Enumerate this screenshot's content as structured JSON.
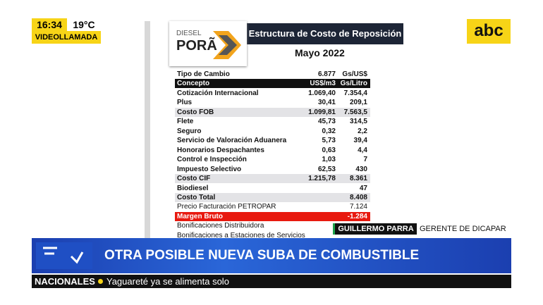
{
  "overlay": {
    "time": "16:34",
    "temperature": "19°C",
    "program": "VIDEOLLAMADA",
    "logo": "abc"
  },
  "document": {
    "brand_top": "DIESEL",
    "brand_name": "PORÃ",
    "title": "Estructura de Costo de Reposición",
    "subtitle": "Mayo 2022",
    "exchange": {
      "label": "Tipo de Cambio",
      "value": "6.877",
      "unit": "Gs/US$"
    },
    "table": {
      "header": [
        "Concepto",
        "US$/m3",
        "Gs/Litro"
      ],
      "rows": [
        {
          "label": "Cotización Internacional",
          "usd": "1.069,40",
          "gs": "7.354,4"
        },
        {
          "label": "Plus",
          "usd": "30,41",
          "gs": "209,1"
        },
        {
          "label": "Costo FOB",
          "usd": "1.099,81",
          "gs": "7.563,5",
          "style": "subtotal"
        },
        {
          "label": "Flete",
          "usd": "45,73",
          "gs": "314,5"
        },
        {
          "label": "Seguro",
          "usd": "0,32",
          "gs": "2,2"
        },
        {
          "label": "Servicio de Valoración Aduanera",
          "usd": "5,73",
          "gs": "39,4"
        },
        {
          "label": "Honorarios Despachantes",
          "usd": "0,63",
          "gs": "4,4"
        },
        {
          "label": "Control e Inspección",
          "usd": "1,03",
          "gs": "7"
        },
        {
          "label": "Impuesto Selectivo",
          "usd": "62,53",
          "gs": "430"
        },
        {
          "label": "Costo CIF",
          "usd": "1.215,78",
          "gs": "8.361",
          "style": "subtotal"
        },
        {
          "label": "Biodiesel",
          "gs": "47"
        },
        {
          "label": "Costo Total",
          "gs": "8.408",
          "style": "subtotal"
        },
        {
          "label": "Precio Facturación PETROPAR",
          "gs": "7.124",
          "style": "plain"
        },
        {
          "label": "Margen Bruto",
          "gs": "-1.284",
          "style": "alert"
        },
        {
          "label": "Bonificaciones Distribuidora",
          "style": "plain"
        },
        {
          "label": "Bonificaciones a Estaciones de Servicios",
          "style": "plain"
        }
      ]
    }
  },
  "lower_third": {
    "name": "GUILLERMO PARRA",
    "role": "GERENTE DE DICAPAR",
    "headline": "OTRA POSIBLE NUEVA SUBA DE COMBUSTIBLE",
    "section": "NACIONALES",
    "ticker": "Yaguareté ya se alimenta solo"
  }
}
